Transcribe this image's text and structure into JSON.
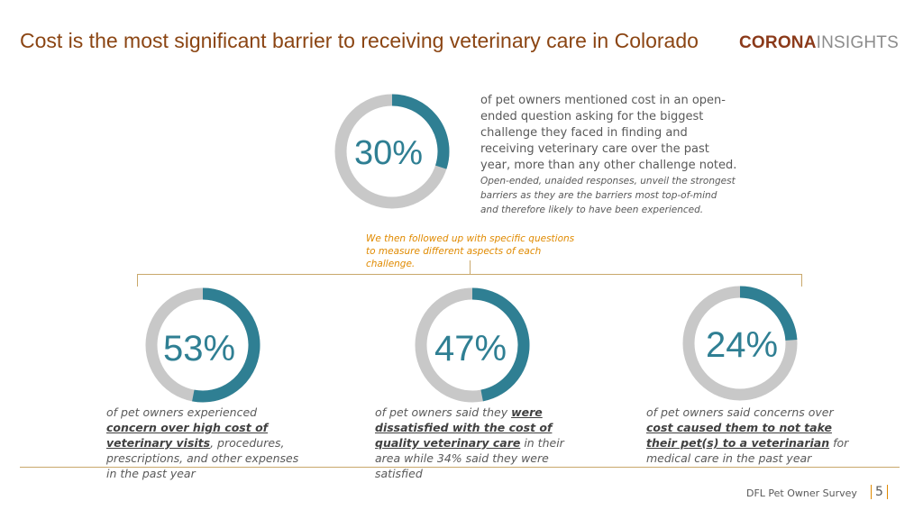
{
  "title": "Cost is the most significant barrier to receiving veterinary care in Colorado",
  "logo": {
    "bold": "CORONA",
    "light": "INSIGHTS"
  },
  "colors": {
    "accent": "#2f7f93",
    "track": "#c8c8c8",
    "title": "#8b4513",
    "orange": "#e08a00"
  },
  "chart_data": [
    {
      "type": "pie",
      "variant": "donut",
      "label": "30%",
      "value": 30
    },
    {
      "type": "pie",
      "variant": "donut",
      "label": "53%",
      "value": 53
    },
    {
      "type": "pie",
      "variant": "donut",
      "label": "47%",
      "value": 47
    },
    {
      "type": "pie",
      "variant": "donut",
      "label": "24%",
      "value": 24
    }
  ],
  "top_text": "of pet owners mentioned cost in an open-ended question asking for the biggest challenge they faced in finding and receiving veterinary care over the past year, more than any other challenge noted.",
  "top_note": "Open-ended, unaided responses, unveil the strongest barriers as they are the barriers most top-of-mind and therefore likely to have been experienced.",
  "followup": "We then followed up with specific questions to measure different aspects of each challenge.",
  "captions": [
    {
      "pre": "of pet owners experienced ",
      "bold": "concern over high cost of veterinary visits",
      "post": ", procedures, prescriptions, and other expenses in the past year"
    },
    {
      "pre": "of pet owners said they ",
      "bold": "were dissatisfied with the cost of quality veterinary care",
      "post": " in their area while 34% said they were satisfied"
    },
    {
      "pre": "of pet owners said concerns over ",
      "bold": "cost caused them to not take their pet(s) to a veterinarian",
      "post": " for medical care in the past year"
    }
  ],
  "footer": {
    "source": "DFL Pet Owner Survey",
    "page": "5"
  }
}
